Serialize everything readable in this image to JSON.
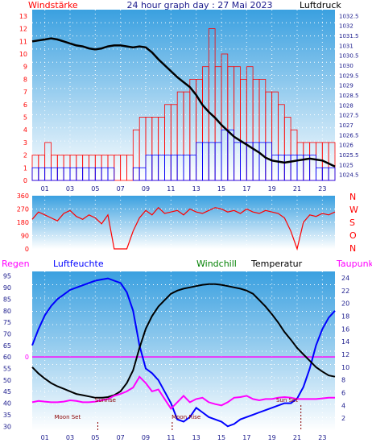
{
  "header": {
    "left_label": "Windstärke",
    "title": "24 hour graph day : 27 Mai 2023",
    "right_label": "Luftdruck"
  },
  "colors": {
    "red": "#ff0000",
    "blue": "#0000ff",
    "black": "#000000",
    "magenta": "#ff00ff",
    "green": "#008000",
    "navy": "#1a1a8c",
    "bg_top": "#3aa0e0",
    "bg_bottom": "#ffffff"
  },
  "chart_data": [
    {
      "type": "line",
      "name": "wind-pressure",
      "x_ticks": [
        "01",
        "03",
        "05",
        "07",
        "09",
        "11",
        "13",
        "15",
        "17",
        "19",
        "21",
        "23"
      ],
      "y_left_ticks": [
        "0",
        "1",
        "2",
        "3",
        "4",
        "5",
        "6",
        "7",
        "8",
        "9",
        "10",
        "11",
        "12",
        "13"
      ],
      "y_left_range": [
        0,
        13.5
      ],
      "y_right_ticks": [
        "1032.5",
        "1032",
        "1031.5",
        "1031",
        "1030.5",
        "1030",
        "1029.5",
        "1029",
        "1028.5",
        "1028",
        "1027.5",
        "1027",
        "1026.5",
        "1026",
        "1025.5",
        "1025",
        "1024.5"
      ],
      "y_right_range": [
        1024.2,
        1032.8
      ],
      "pressure": {
        "hours": [
          0,
          0.5,
          1,
          1.5,
          2,
          2.5,
          3,
          3.5,
          4,
          4.5,
          5,
          5.5,
          6,
          6.5,
          7,
          7.5,
          8,
          8.5,
          9,
          9.5,
          10,
          10.5,
          11,
          11.5,
          12,
          12.5,
          13,
          13.5,
          14,
          14.5,
          15,
          15.5,
          16,
          16.5,
          17,
          17.5,
          18,
          18.5,
          19,
          19.5,
          20,
          20.5,
          21,
          21.5,
          22,
          22.5,
          23,
          23.5,
          24
        ],
        "values": [
          1031.2,
          1031.25,
          1031.3,
          1031.35,
          1031.3,
          1031.2,
          1031.1,
          1031.0,
          1030.95,
          1030.85,
          1030.8,
          1030.85,
          1030.95,
          1031.0,
          1031.0,
          1030.95,
          1030.9,
          1030.95,
          1030.9,
          1030.65,
          1030.3,
          1030.0,
          1029.7,
          1029.4,
          1029.15,
          1028.9,
          1028.5,
          1028.0,
          1027.65,
          1027.35,
          1027.0,
          1026.7,
          1026.4,
          1026.2,
          1026.0,
          1025.8,
          1025.6,
          1025.35,
          1025.2,
          1025.15,
          1025.1,
          1025.15,
          1025.2,
          1025.25,
          1025.3,
          1025.25,
          1025.2,
          1025.05,
          1024.9
        ]
      },
      "wind_gust": {
        "hours": [
          0,
          0.5,
          1,
          1.5,
          2,
          2.5,
          3,
          3.5,
          4,
          4.5,
          5,
          5.5,
          6,
          6.5,
          7,
          7.5,
          8,
          8.5,
          9,
          9.5,
          10,
          10.5,
          11,
          11.5,
          12,
          12.5,
          13,
          13.5,
          14,
          14.5,
          15,
          15.5,
          16,
          16.5,
          17,
          17.5,
          18,
          18.5,
          19,
          19.5,
          20,
          20.5,
          21,
          21.5,
          22,
          22.5,
          23,
          23.5,
          24
        ],
        "values": [
          2,
          2,
          3,
          2,
          2,
          2,
          2,
          2,
          2,
          2,
          2,
          2,
          2,
          2,
          2,
          2,
          4,
          5,
          5,
          5,
          5,
          6,
          6,
          7,
          7,
          8,
          8,
          9,
          12,
          9,
          10,
          9,
          9,
          8,
          9,
          8,
          8,
          7,
          7,
          6,
          5,
          4,
          3,
          3,
          3,
          3,
          3,
          3,
          2
        ]
      },
      "wind_avg": {
        "hours": [
          0,
          0.5,
          1,
          1.5,
          2,
          2.5,
          3,
          3.5,
          4,
          4.5,
          5,
          5.5,
          6,
          6.5,
          7,
          7.5,
          8,
          8.5,
          9,
          9.5,
          10,
          10.5,
          11,
          11.5,
          12,
          12.5,
          13,
          13.5,
          14,
          14.5,
          15,
          15.5,
          16,
          16.5,
          17,
          17.5,
          18,
          18.5,
          19,
          19.5,
          20,
          20.5,
          21,
          21.5,
          22,
          22.5,
          23,
          23.5,
          24
        ],
        "values": [
          1,
          1,
          1,
          1,
          1,
          1,
          1,
          1,
          1,
          1,
          1,
          1,
          1,
          0,
          0,
          0,
          1,
          1,
          2,
          2,
          2,
          2,
          2,
          2,
          2,
          2,
          3,
          3,
          3,
          3,
          4,
          4,
          3,
          3,
          3,
          3,
          3,
          3,
          2,
          2,
          2,
          2,
          2,
          2,
          2,
          1,
          1,
          1,
          1
        ]
      }
    },
    {
      "type": "line",
      "name": "wind-direction",
      "y_left_ticks": [
        "360",
        "270",
        "180",
        "90",
        "0"
      ],
      "y_left_range": [
        0,
        360
      ],
      "y_right_labels": [
        "N",
        "W",
        "S",
        "O",
        "N"
      ],
      "direction": {
        "hours": [
          0,
          0.5,
          1,
          1.5,
          2,
          2.5,
          3,
          3.5,
          4,
          4.5,
          5,
          5.5,
          6,
          6.5,
          7,
          7.5,
          8,
          8.5,
          9,
          9.5,
          10,
          10.5,
          11,
          11.5,
          12,
          12.5,
          13,
          13.5,
          14,
          14.5,
          15,
          15.5,
          16,
          16.5,
          17,
          17.5,
          18,
          18.5,
          19,
          19.5,
          20,
          20.5,
          21,
          21.5,
          22,
          22.5,
          23,
          23.5,
          24
        ],
        "values": [
          200,
          250,
          230,
          210,
          190,
          240,
          260,
          220,
          200,
          230,
          210,
          170,
          230,
          0,
          0,
          0,
          120,
          210,
          260,
          230,
          280,
          240,
          250,
          260,
          230,
          270,
          250,
          240,
          260,
          280,
          270,
          250,
          260,
          240,
          270,
          250,
          240,
          260,
          250,
          240,
          210,
          120,
          0,
          180,
          230,
          220,
          240,
          230,
          250
        ]
      }
    },
    {
      "type": "line",
      "name": "temp-humidity",
      "legend": [
        "Regen",
        "Luftfeuchte",
        "Windchill",
        "Temperatur",
        "Taupunkt"
      ],
      "y_left_ticks": [
        "95",
        "90",
        "85",
        "80",
        "75",
        "70",
        "65",
        "60",
        "55",
        "50",
        "45",
        "40",
        "35",
        "30"
      ],
      "y_left_range": [
        28,
        97
      ],
      "y_right_ticks": [
        "24",
        "22",
        "20",
        "18",
        "16",
        "14",
        "12",
        "10",
        "8",
        "6",
        "4",
        "2"
      ],
      "y_right_range": [
        0,
        25
      ],
      "rain_label": "0",
      "annotations": [
        "Moon Set",
        "Sunrise",
        "Moon Rise",
        "Sun Set"
      ],
      "humidity": {
        "hours": [
          0,
          0.5,
          1,
          1.5,
          2,
          2.5,
          3,
          3.5,
          4,
          4.5,
          5,
          5.5,
          6,
          6.5,
          7,
          7.5,
          8,
          8.5,
          9,
          9.5,
          10,
          10.5,
          11,
          11.5,
          12,
          12.5,
          13,
          13.5,
          14,
          14.5,
          15,
          15.5,
          16,
          16.5,
          17,
          17.5,
          18,
          18.5,
          19,
          19.5,
          20,
          20.5,
          21,
          21.5,
          22,
          22.5,
          23,
          23.5,
          24
        ],
        "values": [
          65,
          72,
          78,
          82,
          85,
          87,
          89,
          90,
          91,
          92,
          93,
          93.5,
          94,
          93,
          92,
          88,
          80,
          65,
          55,
          53,
          50,
          45,
          40,
          33,
          32,
          34,
          38,
          36,
          34,
          33,
          32,
          30,
          31,
          33,
          34,
          35,
          36,
          37,
          38,
          39,
          40,
          40,
          42,
          47,
          55,
          65,
          72,
          77,
          80
        ]
      },
      "temperature": {
        "hours": [
          0,
          0.5,
          1,
          1.5,
          2,
          2.5,
          3,
          3.5,
          4,
          4.5,
          5,
          5.5,
          6,
          6.5,
          7,
          7.5,
          8,
          8.5,
          9,
          9.5,
          10,
          10.5,
          11,
          11.5,
          12,
          12.5,
          13,
          13.5,
          14,
          14.5,
          15,
          15.5,
          16,
          16.5,
          17,
          17.5,
          18,
          18.5,
          19,
          19.5,
          20,
          20.5,
          21,
          21.5,
          22,
          22.5,
          23,
          23.5,
          24
        ],
        "values": [
          10,
          9,
          8.2,
          7.5,
          7,
          6.6,
          6.2,
          5.8,
          5.6,
          5.4,
          5.2,
          5.2,
          5.3,
          5.6,
          6.2,
          7.5,
          9.5,
          13,
          16,
          18,
          19.5,
          20.5,
          21.5,
          22,
          22.3,
          22.5,
          22.7,
          22.9,
          23,
          23,
          22.9,
          22.7,
          22.5,
          22.3,
          22,
          21.5,
          20.5,
          19.5,
          18.3,
          17,
          15.5,
          14.3,
          13,
          12,
          11,
          10,
          9.3,
          8.7,
          8.5
        ]
      },
      "dewpoint": {
        "hours": [
          0,
          0.5,
          1,
          1.5,
          2,
          2.5,
          3,
          3.5,
          4,
          4.5,
          5,
          5.5,
          6,
          6.5,
          7,
          7.5,
          8,
          8.5,
          9,
          9.5,
          10,
          10.5,
          11,
          11.5,
          12,
          12.5,
          13,
          13.5,
          14,
          14.5,
          15,
          15.5,
          16,
          16.5,
          17,
          17.5,
          18,
          18.5,
          19,
          19.5,
          20,
          20.5,
          21,
          21.5,
          22,
          22.5,
          23,
          23.5,
          24
        ],
        "values": [
          4.5,
          4.7,
          4.6,
          4.5,
          4.5,
          4.6,
          4.8,
          4.7,
          4.5,
          4.5,
          4.6,
          4.8,
          5.0,
          5.5,
          5.8,
          6.2,
          6.8,
          8.5,
          7.5,
          6.2,
          6.5,
          5,
          3.5,
          4.5,
          5.5,
          4.5,
          5,
          5.2,
          4.5,
          4.2,
          4,
          4.5,
          5.2,
          5.3,
          5.5,
          5.0,
          4.8,
          5,
          5,
          5.2,
          5.3,
          5.2,
          5.0,
          5.0,
          5.0,
          5.0,
          5.1,
          5.2,
          5.2
        ]
      }
    }
  ]
}
